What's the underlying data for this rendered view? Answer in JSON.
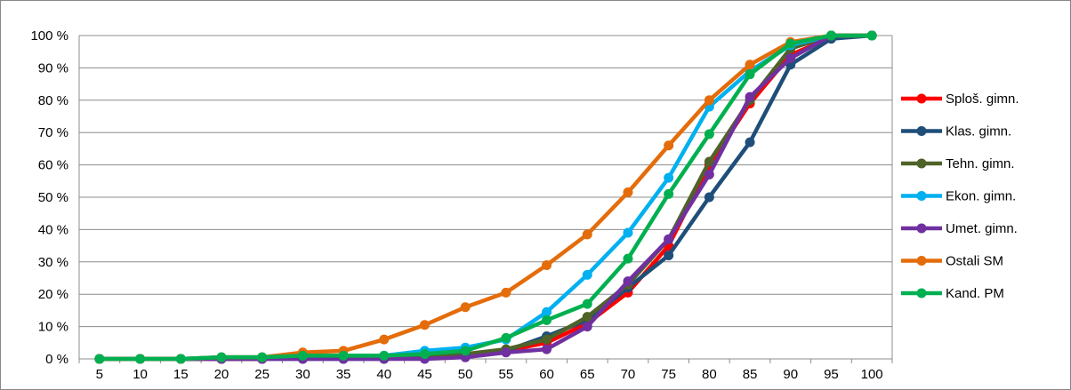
{
  "chart_data": {
    "type": "line",
    "title": "",
    "xlabel": "",
    "ylabel": "",
    "ylim": [
      0,
      100
    ],
    "grid": true,
    "legend_position": "right",
    "x": [
      "5",
      "10",
      "15",
      "20",
      "25",
      "30",
      "35",
      "40",
      "45",
      "50",
      "55",
      "60",
      "65",
      "70",
      "75",
      "80",
      "85",
      "90",
      "95",
      "100"
    ],
    "y_ticks": [
      "0 %",
      "10 %",
      "20 %",
      "30 %",
      "40 %",
      "50 %",
      "60 %",
      "70 %",
      "80 %",
      "90 %",
      "100 %"
    ],
    "series": [
      {
        "name": "Sploš. gimn.",
        "color": "#ff0000",
        "values": [
          0,
          0,
          0,
          0,
          0,
          0.5,
          0.5,
          0.5,
          0.5,
          1,
          2.5,
          5,
          11,
          20.5,
          35,
          60,
          79,
          94,
          99.5,
          100
        ]
      },
      {
        "name": "Klas. gimn.",
        "color": "#1f4e79",
        "values": [
          0,
          0,
          0,
          0,
          0,
          0,
          0,
          0,
          0.5,
          1,
          2.5,
          7,
          12,
          22,
          32,
          50,
          67,
          91,
          99,
          100
        ]
      },
      {
        "name": "Tehn. gimn.",
        "color": "#4f6228",
        "values": [
          0,
          0,
          0,
          0,
          0,
          0.5,
          0.5,
          0.5,
          0.5,
          1.5,
          3,
          6,
          13,
          23,
          37,
          61,
          80,
          96,
          100,
          100
        ]
      },
      {
        "name": "Ekon. gimn.",
        "color": "#00b0f0",
        "values": [
          0,
          0,
          0,
          0.5,
          0.5,
          1,
          1,
          1,
          2.5,
          3.5,
          6,
          14.5,
          26,
          39,
          56,
          78,
          89,
          97,
          100,
          100
        ]
      },
      {
        "name": "Umet. gimn.",
        "color": "#7030a0",
        "values": [
          0,
          0,
          0,
          0,
          0,
          0,
          0,
          0,
          0,
          0.5,
          2,
          3,
          10,
          24,
          37,
          57,
          81,
          93,
          100,
          100
        ]
      },
      {
        "name": "Ostali SM",
        "color": "#e46c0a",
        "values": [
          0,
          0,
          0,
          0.5,
          0.5,
          2,
          2.5,
          6,
          10.5,
          16,
          20.5,
          29,
          38.5,
          51.5,
          66,
          80,
          91,
          98,
          100,
          100
        ]
      },
      {
        "name": "Kand. PM",
        "color": "#00b050",
        "values": [
          0,
          0,
          0,
          0.5,
          0.5,
          1,
          1,
          1,
          1.5,
          2.5,
          6.5,
          12,
          17,
          31,
          51,
          69.5,
          88,
          97.5,
          100,
          100
        ]
      }
    ]
  }
}
